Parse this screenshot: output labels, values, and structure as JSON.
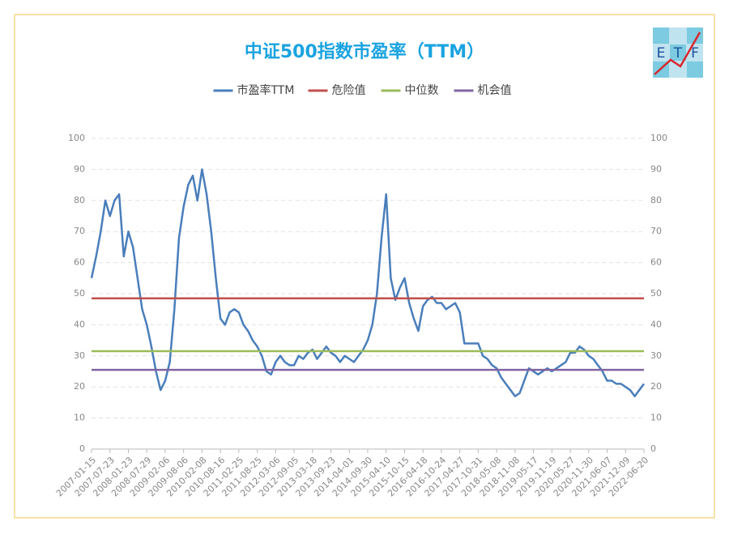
{
  "chart_data": {
    "type": "line",
    "title": "中证500指数市盈率（TTM）",
    "logo": [
      "E",
      "T",
      "F"
    ],
    "categories": [
      "2007-01-15",
      null,
      null,
      null,
      "2007-07-23",
      null,
      null,
      null,
      "2008-01-23",
      null,
      null,
      null,
      "2008-07-29",
      null,
      null,
      null,
      "2009-02-06",
      null,
      null,
      null,
      "2009-08-06",
      null,
      null,
      null,
      "2010-02-08",
      null,
      null,
      null,
      "2010-08-16",
      null,
      null,
      null,
      "2011-02-25",
      null,
      null,
      null,
      "2011-08-25",
      null,
      null,
      null,
      "2012-03-06",
      null,
      null,
      null,
      "2012-09-05",
      null,
      null,
      null,
      "2013-03-18",
      null,
      null,
      null,
      "2013-09-23",
      null,
      null,
      null,
      "2014-04-01",
      null,
      null,
      null,
      "2014-09-30",
      null,
      null,
      null,
      "2015-04-10",
      null,
      null,
      null,
      "2015-10-15",
      null,
      null,
      null,
      "2016-04-18",
      null,
      null,
      null,
      "2016-10-24",
      null,
      null,
      null,
      "2017-04-27",
      null,
      null,
      null,
      "2017-10-31",
      null,
      null,
      null,
      "2018-05-08",
      null,
      null,
      null,
      "2018-11-08",
      null,
      null,
      null,
      "2019-05-17",
      null,
      null,
      null,
      "2019-11-19",
      null,
      null,
      null,
      "2020-05-27",
      null,
      null,
      null,
      "2020-11-30",
      null,
      null,
      null,
      "2021-06-07",
      null,
      null,
      null,
      "2021-12-09",
      null,
      null,
      null,
      "2022-06-20"
    ],
    "series": [
      {
        "name": "市盈率TTM",
        "color": "#4a7ebb",
        "values": [
          55,
          62,
          70,
          80,
          75,
          80,
          82,
          62,
          70,
          65,
          55,
          45,
          40,
          33,
          25,
          19,
          22,
          28,
          45,
          68,
          78,
          85,
          88,
          80,
          90,
          82,
          70,
          55,
          42,
          40,
          44,
          45,
          44,
          40,
          38,
          35,
          33,
          30,
          25,
          24,
          28,
          30,
          28,
          27,
          27,
          30,
          29,
          31,
          32,
          29,
          31,
          33,
          31,
          30,
          28,
          30,
          29,
          28,
          30,
          32,
          35,
          40,
          50,
          68,
          82,
          55,
          48,
          52,
          55,
          47,
          42,
          38,
          46,
          48,
          49,
          47,
          47,
          45,
          46,
          47,
          44,
          34,
          34,
          34,
          34,
          30,
          29,
          27,
          26,
          23,
          21,
          19,
          17,
          18,
          22,
          26,
          25,
          24,
          25,
          26,
          25,
          26,
          27,
          28,
          31,
          31,
          33,
          32,
          30,
          29,
          27,
          25,
          22,
          22,
          21,
          21,
          20,
          19,
          17,
          19,
          21
        ]
      },
      {
        "name": "危险值",
        "color": "#c0504d",
        "value": 48.5
      },
      {
        "name": "中位数",
        "color": "#9bbb59",
        "value": 31.5
      },
      {
        "name": "机会值",
        "color": "#8064a2",
        "value": 25.5
      }
    ],
    "ylim": [
      0,
      100
    ],
    "yticks": [
      0,
      10,
      20,
      30,
      40,
      50,
      60,
      70,
      80,
      90,
      100
    ],
    "y2lim": [
      0,
      100
    ],
    "y2ticks": [
      0,
      10,
      20,
      30,
      40,
      50,
      60,
      70,
      80,
      90,
      100
    ],
    "grid": true
  }
}
